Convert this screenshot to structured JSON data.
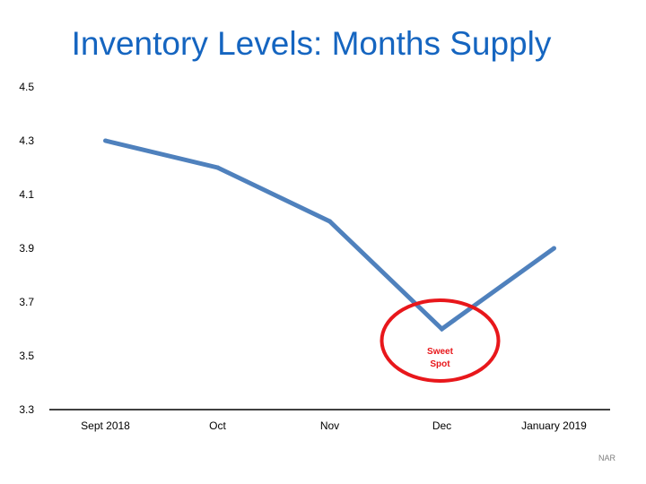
{
  "title": "Inventory Levels: Months Supply",
  "source": "NAR",
  "colors": {
    "title": "#1565c0",
    "line": "#4f81bd",
    "highlight": "#e8171b",
    "axis": "#000000"
  },
  "chart_data": {
    "type": "line",
    "title": "Inventory Levels: Months Supply",
    "categories": [
      "Sept 2018",
      "Oct",
      "Nov",
      "Dec",
      "January 2019"
    ],
    "series": [
      {
        "values": [
          4.3,
          4.2,
          4.0,
          3.6,
          3.9
        ]
      }
    ],
    "ylim": [
      3.3,
      4.5
    ],
    "yticks": [
      "3.3",
      "3.5",
      "3.7",
      "3.9",
      "4.1",
      "4.3",
      "4.5"
    ],
    "grid": false,
    "annotations": [
      {
        "text_lines": [
          "Sweet",
          "Spot"
        ],
        "category": "Dec",
        "shape": "ellipse"
      }
    ]
  }
}
